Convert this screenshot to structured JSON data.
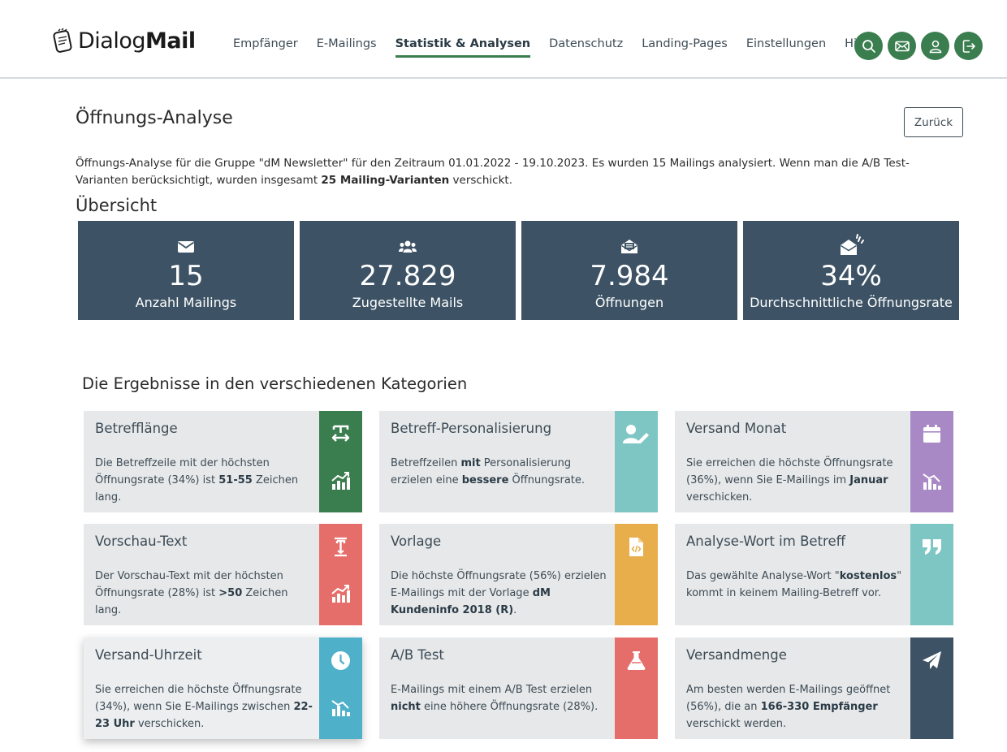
{
  "brand": {
    "name_light": "Dialog",
    "name_bold": "Mail"
  },
  "nav": [
    {
      "label": "Empfänger",
      "active": false
    },
    {
      "label": "E-Mailings",
      "active": false
    },
    {
      "label": "Statistik & Analysen",
      "active": true
    },
    {
      "label": "Datenschutz",
      "active": false
    },
    {
      "label": "Landing-Pages",
      "active": false
    },
    {
      "label": "Einstellungen",
      "active": false
    },
    {
      "label": "Hilfe",
      "active": false
    }
  ],
  "header_icons": [
    "search-icon",
    "envelope-icon",
    "user-icon",
    "logout-icon"
  ],
  "page": {
    "title": "Öffnungs-Analyse",
    "back_label": "Zurück",
    "intro_p1": "Öffnungs-Analyse für die Gruppe \"dM Newsletter\" für den Zeitraum 01.01.2022 - 19.10.2023. Es wurden 15 Mailings analysiert. Wenn man die A/B Test-Varianten berücksichtigt, wurden insgesamt ",
    "intro_bold": "25 Mailing-Varianten",
    "intro_p2": " verschickt.",
    "overview_heading": "Übersicht",
    "categories_heading": "Die Ergebnisse in den verschiedenen Kategorien"
  },
  "stats": [
    {
      "icon": "envelope-icon",
      "value": "15",
      "label": "Anzahl Mailings"
    },
    {
      "icon": "users-icon",
      "value": "27.829",
      "label": "Zugestellte Mails"
    },
    {
      "icon": "envelope-open-text-icon",
      "value": "7.984",
      "label": "Öffnungen"
    },
    {
      "icon": "envelope-open-sparkle-icon",
      "value": "34%",
      "label": "Durchschnittliche Öffnungsrate"
    }
  ],
  "cards": [
    {
      "title": "Betrefflänge",
      "text": [
        "Die Betreffzeile mit der höchsten Öffnungsrate (34%) ist ",
        {
          "b": "51-55"
        },
        " Zeichen lang."
      ],
      "color": "#3a7d4f",
      "icons": [
        "text-width-icon",
        "chart-up-icon"
      ]
    },
    {
      "title": "Betreff-Personalisierung",
      "text": [
        "Betreffzeilen ",
        {
          "b": "mit"
        },
        " Personalisierung erzielen eine ",
        {
          "b": "bessere"
        },
        " Öffnungsrate."
      ],
      "color": "#7ec6c3",
      "icons": [
        "user-edit-icon"
      ]
    },
    {
      "title": "Versand Monat",
      "text": [
        "Sie erreichen die höchste Öffnungsrate (36%), wenn Sie E-Mailings im ",
        {
          "b": "Januar"
        },
        " verschicken."
      ],
      "color": "#a889c6",
      "icons": [
        "calendar-icon",
        "chart-mixed-icon"
      ]
    },
    {
      "title": "Vorschau-Text",
      "text": [
        "Der Vorschau-Text mit der höchsten Öffnungsrate (28%) ist ",
        {
          "b": ">50"
        },
        " Zeichen lang."
      ],
      "color": "#e66e6a",
      "icons": [
        "text-height-icon",
        "chart-up-icon"
      ]
    },
    {
      "title": "Vorlage",
      "text": [
        "Die höchste Öffnungsrate (56%) erzielen E-Mailings mit der Vorlage ",
        {
          "b": "dM Kundeninfo 2018 (R)"
        },
        "."
      ],
      "color": "#e8ae4b",
      "icons": [
        "file-code-icon"
      ]
    },
    {
      "title": "Analyse-Wort im Betreff",
      "text": [
        "Das gewählte Analyse-Wort \"",
        {
          "b": "kostenlos"
        },
        "\" kommt in keinem Mailing-Betreff vor."
      ],
      "color": "#7ec6c3",
      "icons": [
        "quote-icon"
      ]
    },
    {
      "title": "Versand-Uhrzeit",
      "text": [
        "Sie erreichen die höchste Öffnungsrate (34%), wenn Sie E-Mailings zwischen ",
        {
          "b": "22-23 Uhr"
        },
        " verschicken."
      ],
      "color": "#4fb0c9",
      "icons": [
        "clock-icon",
        "chart-mixed-icon"
      ]
    },
    {
      "title": "A/B Test",
      "text": [
        "E-Mailings mit einem A/B Test erzielen ",
        {
          "b": "nicht"
        },
        " eine höhere Öffnungsrate (28%)."
      ],
      "color": "#e66e6a",
      "icons": [
        "flask-icon"
      ]
    },
    {
      "title": "Versandmenge",
      "text": [
        "Am besten werden E-Mailings geöffnet (56%), die an ",
        {
          "b": "166-330 Empfänger"
        },
        " verschickt werden."
      ],
      "color": "#3d5365",
      "icons": [
        "paper-plane-icon"
      ]
    }
  ]
}
